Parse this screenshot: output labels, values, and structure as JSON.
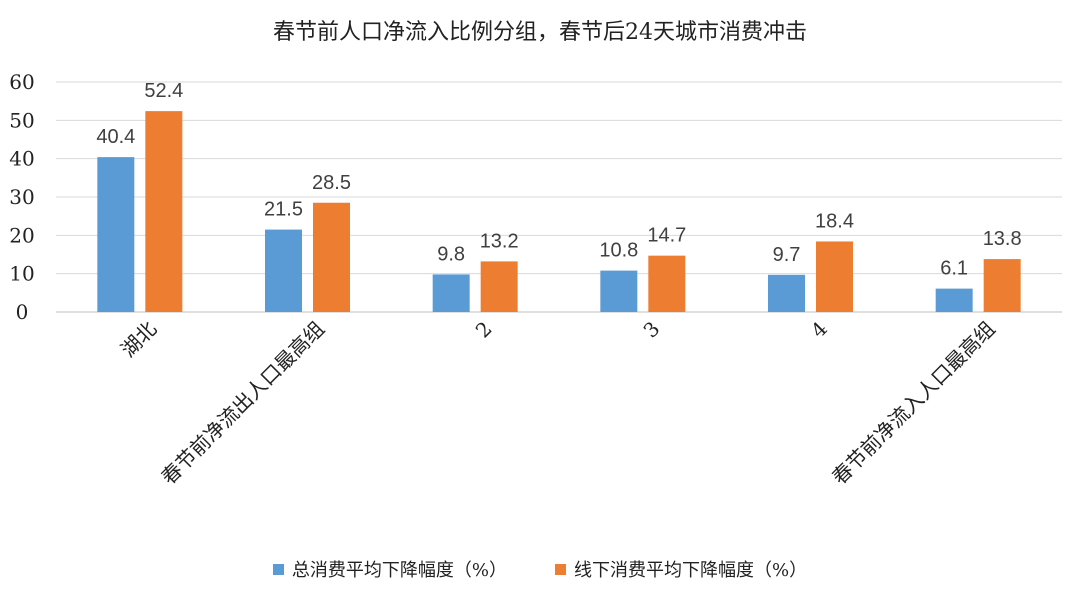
{
  "chart_data": {
    "type": "bar",
    "title": "春节前人口净流入比例分组，春节后24天城市消费冲击",
    "categories": [
      "湖北",
      "春节前净流出人口最高组",
      "2",
      "3",
      "4",
      "春节前净流入人口最高组"
    ],
    "series": [
      {
        "name": "总消费平均下降幅度（%）",
        "color": "#5B9BD5",
        "values": [
          40.4,
          21.5,
          9.8,
          10.8,
          9.7,
          6.1
        ]
      },
      {
        "name": "线下消费平均下降幅度（%）",
        "color": "#ED7D31",
        "values": [
          52.4,
          28.5,
          13.2,
          14.7,
          18.4,
          13.8
        ]
      }
    ],
    "ylim": [
      0,
      60
    ],
    "yticks": [
      0,
      10,
      20,
      30,
      40,
      50,
      60
    ],
    "xlabel": "",
    "ylabel": "",
    "grid": true,
    "legend_position": "bottom",
    "data_labels": true
  }
}
